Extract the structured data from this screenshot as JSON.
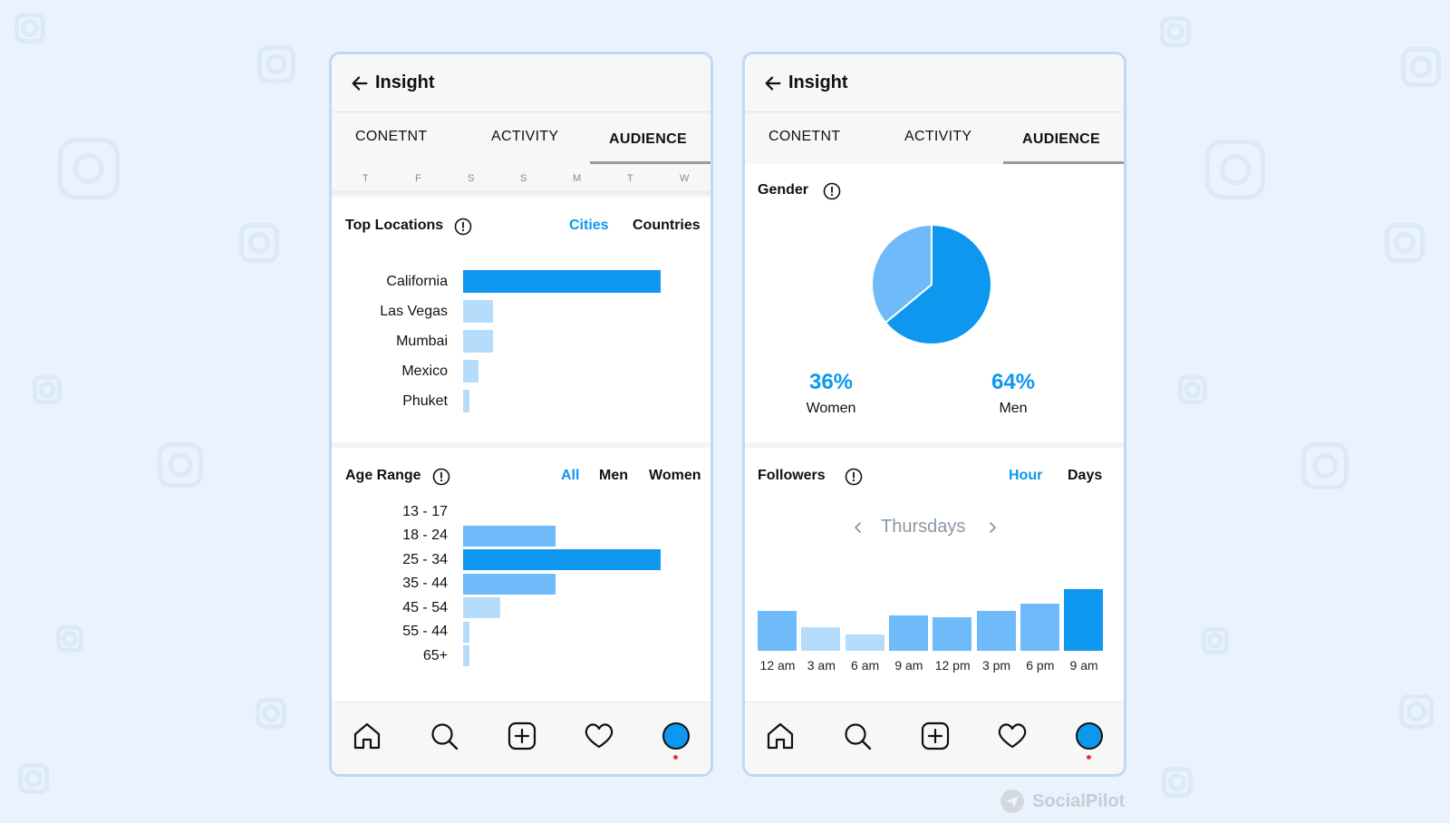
{
  "colors": {
    "primary": "#0d97ef",
    "light": "#b5dcfb",
    "mid": "#6fbaf9",
    "muted": "#8a97a6"
  },
  "left_panel": {
    "header": {
      "title": "Insight"
    },
    "tabs": [
      "CONETNT",
      "ACTIVITY",
      "AUDIENCE"
    ],
    "active_tab": "AUDIENCE",
    "days": [
      "T",
      "F",
      "S",
      "S",
      "M",
      "T",
      "W"
    ],
    "top_locations": {
      "title": "Top Locations",
      "toggles": [
        "Cities",
        "Countries"
      ],
      "selected": "Cities",
      "chart_data": {
        "type": "bar",
        "orientation": "horizontal",
        "title": "Top Locations",
        "categories": [
          "California",
          "Las Vegas",
          "Mumbai",
          "Mexico",
          "Phuket"
        ],
        "values": [
          100,
          15,
          15,
          8,
          3
        ],
        "xlim": [
          0,
          100
        ]
      }
    },
    "age_range": {
      "title": "Age Range",
      "toggles": [
        "All",
        "Men",
        "Women"
      ],
      "selected": "All",
      "chart_data": {
        "type": "bar",
        "orientation": "horizontal",
        "title": "Age Range",
        "categories": [
          "13 - 17",
          "18 - 24",
          "25 - 34",
          "35 - 44",
          "45 - 54",
          "55 - 44",
          "65+"
        ],
        "values": [
          0,
          47,
          100,
          47,
          19,
          3,
          3
        ],
        "xlim": [
          0,
          100
        ]
      }
    }
  },
  "right_panel": {
    "header": {
      "title": "Insight"
    },
    "tabs": [
      "CONETNT",
      "ACTIVITY",
      "AUDIENCE"
    ],
    "active_tab": "AUDIENCE",
    "gender": {
      "title": "Gender",
      "chart_data": {
        "type": "pie",
        "title": "Gender",
        "categories": [
          "Women",
          "Men"
        ],
        "values": [
          36,
          64
        ]
      },
      "women": {
        "pct": "36%",
        "label": "Women"
      },
      "men": {
        "pct": "64%",
        "label": "Men"
      }
    },
    "followers": {
      "title": "Followers",
      "toggles": [
        "Hour",
        "Days"
      ],
      "selected": "Hour",
      "day": "Thursdays",
      "chart_data": {
        "type": "bar",
        "title": "Followers",
        "categories": [
          "12 am",
          "3 am",
          "6 am",
          "9 am",
          "12 pm",
          "3 pm",
          "6 pm",
          "9 am"
        ],
        "values": [
          64,
          38,
          26,
          58,
          54,
          64,
          76,
          100
        ],
        "ylim": [
          0,
          100
        ]
      }
    }
  },
  "navbar_icons": [
    "home-icon",
    "search-icon",
    "add-post-icon",
    "heart-icon",
    "profile-avatar"
  ],
  "brand": "SocialPilot"
}
